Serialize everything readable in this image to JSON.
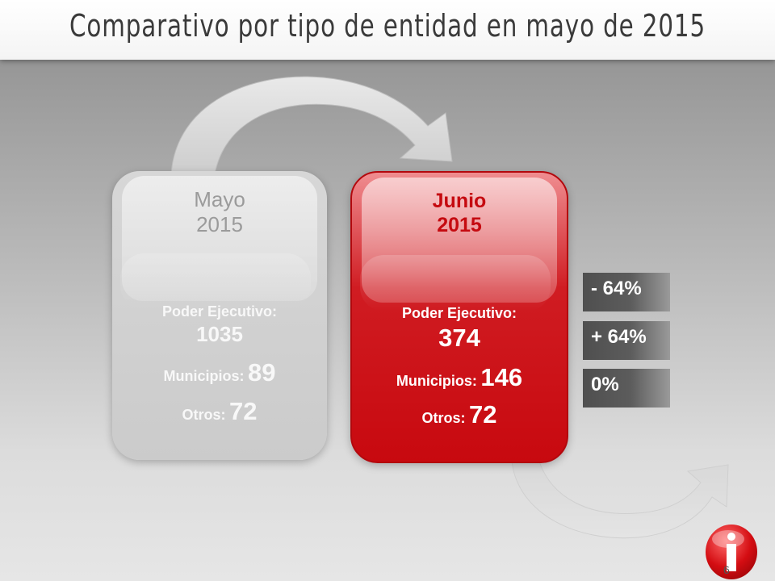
{
  "slide": {
    "title": "Comparativo por tipo de entidad en mayo de 2015",
    "page_number": "6"
  },
  "cards": {
    "may": {
      "title_line1": "Mayo",
      "title_line2": "2015",
      "poder_label": "Poder Ejecutivo:",
      "poder_value": "1035",
      "municipios_label": "Municipios:",
      "municipios_value": "89",
      "otros_label": "Otros:",
      "otros_value": "72"
    },
    "jun": {
      "title_line1": "Junio",
      "title_line2": "2015",
      "poder_label": "Poder Ejecutivo:",
      "poder_value": "374",
      "municipios_label": "Municipios:",
      "municipios_value": "146",
      "otros_label": "Otros:",
      "otros_value": "72"
    }
  },
  "changes": [
    {
      "text": "- 64%"
    },
    {
      "text": "+ 64%"
    },
    {
      "text": "0%"
    }
  ],
  "colors": {
    "accent_red": "#c8090f",
    "neutral_gray": "#cbcbcb"
  },
  "icons": [
    "curved-arrow-top-icon",
    "curved-arrow-bottom-icon",
    "info-logo-icon"
  ]
}
